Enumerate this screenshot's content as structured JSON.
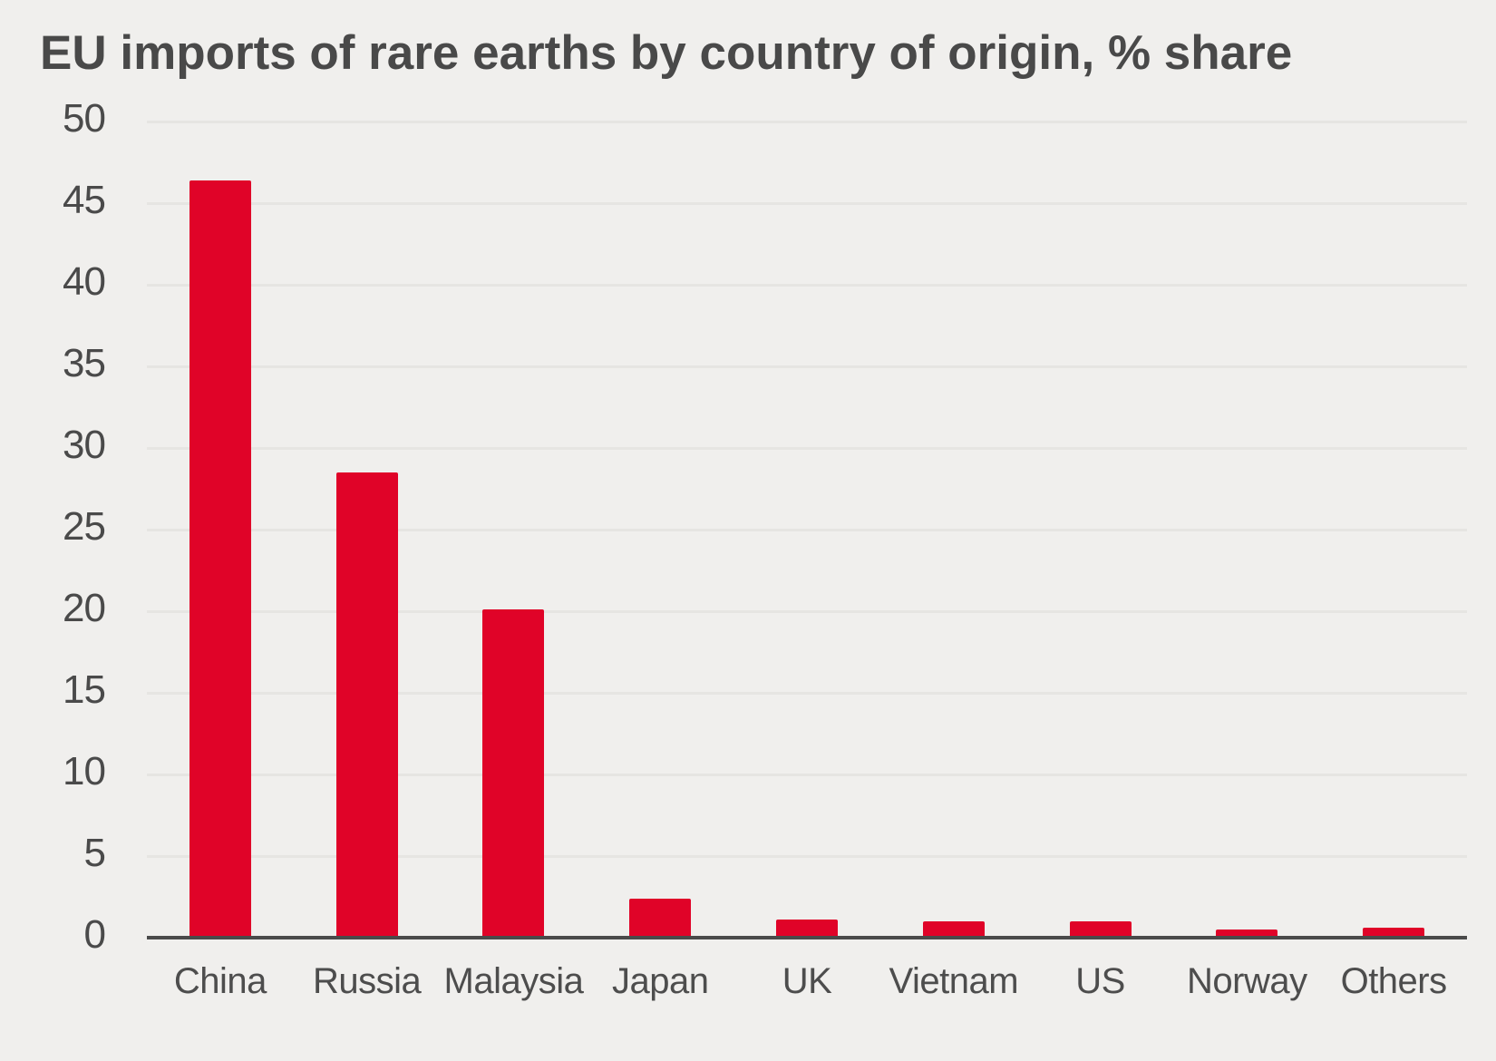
{
  "chart_data": {
    "type": "bar",
    "title": "EU imports of rare earths by country of origin, % share",
    "categories": [
      "China",
      "Russia",
      "Malaysia",
      "Japan",
      "UK",
      "Vietnam",
      "US",
      "Norway",
      "Others"
    ],
    "values": [
      46.3,
      28.4,
      20,
      2.3,
      1.0,
      0.9,
      0.9,
      0.4,
      0.5
    ],
    "xlabel": "",
    "ylabel": "",
    "ylim": [
      0,
      50
    ],
    "yticks": [
      0,
      5,
      10,
      15,
      20,
      25,
      30,
      35,
      40,
      45,
      50
    ],
    "grid": true,
    "legend": "none",
    "bar_color": "#e00328",
    "background_color": "#f0efed",
    "axis_color": "#4a4a4a",
    "text_color": "#4a4a4a"
  }
}
